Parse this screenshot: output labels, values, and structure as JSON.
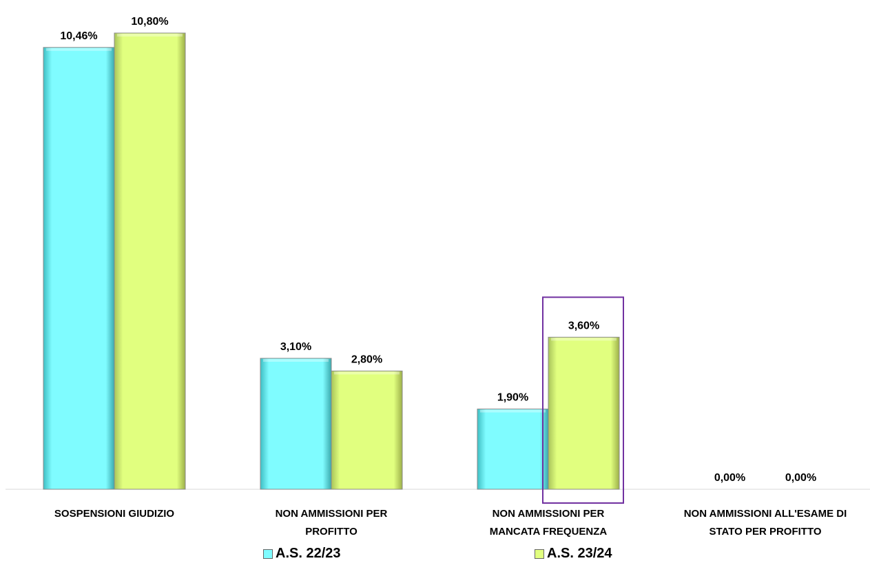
{
  "chart_data": {
    "type": "bar",
    "title": "",
    "xlabel": "",
    "ylabel": "",
    "ylim": [
      0,
      11
    ],
    "categories": [
      [
        "SOSPENSIONI GIUDIZIO"
      ],
      [
        "NON AMMISSIONI PER",
        "PROFITTO"
      ],
      [
        "NON AMMISSIONI PER",
        "MANCATA FREQUENZA"
      ],
      [
        "NON AMMISSIONI ALL'ESAME DI",
        "STATO PER PROFITTO"
      ]
    ],
    "series": [
      {
        "name": "A.S. 22/23",
        "color": "#7ffcff",
        "values": [
          10.46,
          3.1,
          1.9,
          0.0
        ],
        "labels": [
          "10,46%",
          "3,10%",
          "1,90%",
          "0,00%"
        ]
      },
      {
        "name": "A.S. 23/24",
        "color": "#e1ff7f",
        "values": [
          10.8,
          2.8,
          3.6,
          0.0
        ],
        "labels": [
          "10,80%",
          "2,80%",
          "3,60%",
          "0,00%"
        ]
      }
    ],
    "highlight": {
      "series": 1,
      "category": 2,
      "color": "#7030a0"
    },
    "legend": "bottom",
    "grid": false
  }
}
